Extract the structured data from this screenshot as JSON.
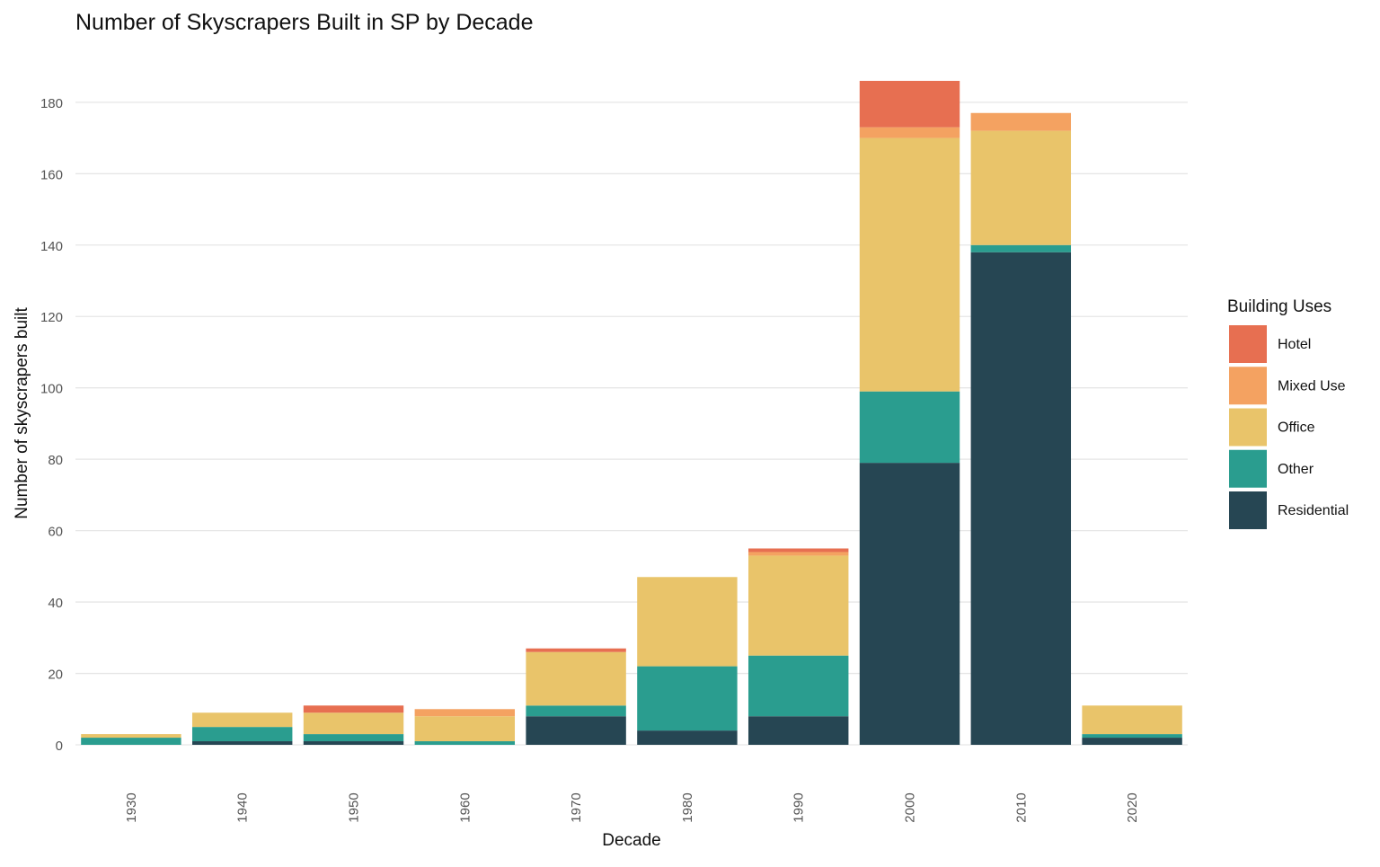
{
  "chart_data": {
    "type": "bar",
    "stacked": true,
    "title": "Number of Skyscrapers Built in SP by Decade",
    "xlabel": "Decade",
    "ylabel": "Number of skyscrapers built",
    "categories": [
      "1930",
      "1940",
      "1950",
      "1960",
      "1970",
      "1980",
      "1990",
      "2000",
      "2010",
      "2020"
    ],
    "ylim": [
      0,
      186
    ],
    "yticks": [
      0,
      20,
      40,
      60,
      80,
      100,
      120,
      140,
      160,
      180
    ],
    "grid": true,
    "legend": {
      "title": "Building Uses",
      "position": "right"
    },
    "series": [
      {
        "name": "Residential",
        "color": "#264653",
        "values": [
          0,
          1,
          1,
          0,
          8,
          4,
          8,
          79,
          138,
          2
        ]
      },
      {
        "name": "Other",
        "color": "#2a9d8f",
        "values": [
          2,
          4,
          2,
          1,
          3,
          18,
          17,
          20,
          2,
          1
        ]
      },
      {
        "name": "Office",
        "color": "#e9c46a",
        "values": [
          1,
          4,
          6,
          7,
          15,
          25,
          28,
          71,
          32,
          8
        ]
      },
      {
        "name": "Mixed Use",
        "color": "#f4a261",
        "values": [
          0,
          0,
          0,
          2,
          0,
          0,
          1,
          3,
          5,
          0
        ]
      },
      {
        "name": "Hotel",
        "color": "#e76f51",
        "values": [
          0,
          0,
          2,
          0,
          1,
          0,
          1,
          13,
          0,
          0
        ]
      }
    ],
    "legend_order": [
      "Hotel",
      "Mixed Use",
      "Office",
      "Other",
      "Residential"
    ]
  }
}
